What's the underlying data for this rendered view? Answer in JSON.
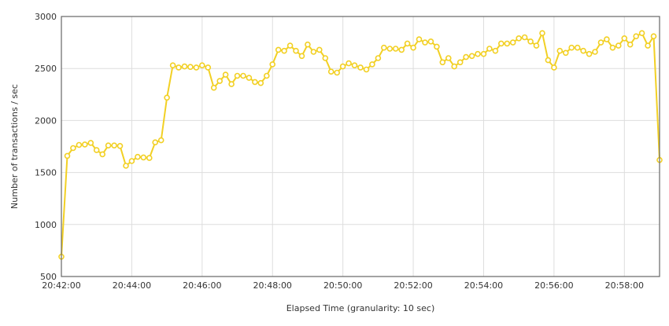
{
  "chart_data": {
    "type": "line",
    "title": "",
    "xlabel": "Elapsed Time (granularity: 10 sec)",
    "ylabel": "Number of transactions / sec",
    "ylim": [
      500,
      3000
    ],
    "y_ticks": [
      500,
      1000,
      1500,
      2000,
      2500,
      3000
    ],
    "x_start": "20:42:00",
    "x_end": "20:59:00",
    "x_ticks": [
      "20:42:00",
      "20:44:00",
      "20:46:00",
      "20:48:00",
      "20:50:00",
      "20:52:00",
      "20:54:00",
      "20:56:00",
      "20:58:00"
    ],
    "grid": true,
    "legend": "none",
    "series": [
      {
        "name": "",
        "color": "#f2d024",
        "points": [
          [
            "20:42:00",
            690
          ],
          [
            "20:42:10",
            1660
          ],
          [
            "20:42:20",
            1735
          ],
          [
            "20:42:30",
            1765
          ],
          [
            "20:42:40",
            1770
          ],
          [
            "20:42:50",
            1785
          ],
          [
            "20:43:00",
            1715
          ],
          [
            "20:43:10",
            1675
          ],
          [
            "20:43:20",
            1760
          ],
          [
            "20:43:30",
            1760
          ],
          [
            "20:43:40",
            1755
          ],
          [
            "20:43:50",
            1565
          ],
          [
            "20:44:00",
            1610
          ],
          [
            "20:44:10",
            1650
          ],
          [
            "20:44:20",
            1645
          ],
          [
            "20:44:30",
            1640
          ],
          [
            "20:44:40",
            1790
          ],
          [
            "20:44:50",
            1810
          ],
          [
            "20:45:00",
            2220
          ],
          [
            "20:45:10",
            2530
          ],
          [
            "20:45:20",
            2510
          ],
          [
            "20:45:30",
            2520
          ],
          [
            "20:45:40",
            2515
          ],
          [
            "20:45:50",
            2510
          ],
          [
            "20:46:00",
            2530
          ],
          [
            "20:46:10",
            2510
          ],
          [
            "20:46:20",
            2315
          ],
          [
            "20:46:30",
            2380
          ],
          [
            "20:46:40",
            2440
          ],
          [
            "20:46:50",
            2350
          ],
          [
            "20:47:00",
            2430
          ],
          [
            "20:47:10",
            2430
          ],
          [
            "20:47:20",
            2410
          ],
          [
            "20:47:30",
            2370
          ],
          [
            "20:47:40",
            2360
          ],
          [
            "20:47:50",
            2430
          ],
          [
            "20:48:00",
            2540
          ],
          [
            "20:48:10",
            2680
          ],
          [
            "20:48:20",
            2670
          ],
          [
            "20:48:30",
            2720
          ],
          [
            "20:48:40",
            2670
          ],
          [
            "20:48:50",
            2620
          ],
          [
            "20:49:00",
            2730
          ],
          [
            "20:49:10",
            2660
          ],
          [
            "20:49:20",
            2680
          ],
          [
            "20:49:30",
            2600
          ],
          [
            "20:49:40",
            2470
          ],
          [
            "20:49:50",
            2460
          ],
          [
            "20:50:00",
            2520
          ],
          [
            "20:50:10",
            2550
          ],
          [
            "20:50:20",
            2530
          ],
          [
            "20:50:30",
            2510
          ],
          [
            "20:50:40",
            2490
          ],
          [
            "20:50:50",
            2540
          ],
          [
            "20:51:00",
            2600
          ],
          [
            "20:51:10",
            2700
          ],
          [
            "20:51:20",
            2690
          ],
          [
            "20:51:30",
            2690
          ],
          [
            "20:51:40",
            2680
          ],
          [
            "20:51:50",
            2740
          ],
          [
            "20:52:00",
            2700
          ],
          [
            "20:52:10",
            2780
          ],
          [
            "20:52:20",
            2750
          ],
          [
            "20:52:30",
            2760
          ],
          [
            "20:52:40",
            2710
          ],
          [
            "20:52:50",
            2560
          ],
          [
            "20:53:00",
            2600
          ],
          [
            "20:53:10",
            2520
          ],
          [
            "20:53:20",
            2560
          ],
          [
            "20:53:30",
            2610
          ],
          [
            "20:53:40",
            2620
          ],
          [
            "20:53:50",
            2640
          ],
          [
            "20:54:00",
            2640
          ],
          [
            "20:54:10",
            2690
          ],
          [
            "20:54:20",
            2670
          ],
          [
            "20:54:30",
            2740
          ],
          [
            "20:54:40",
            2740
          ],
          [
            "20:54:50",
            2750
          ],
          [
            "20:55:00",
            2790
          ],
          [
            "20:55:10",
            2800
          ],
          [
            "20:55:20",
            2760
          ],
          [
            "20:55:30",
            2720
          ],
          [
            "20:55:40",
            2840
          ],
          [
            "20:55:50",
            2580
          ],
          [
            "20:56:00",
            2510
          ],
          [
            "20:56:10",
            2670
          ],
          [
            "20:56:20",
            2650
          ],
          [
            "20:56:30",
            2700
          ],
          [
            "20:56:40",
            2700
          ],
          [
            "20:56:50",
            2670
          ],
          [
            "20:57:00",
            2640
          ],
          [
            "20:57:10",
            2660
          ],
          [
            "20:57:20",
            2750
          ],
          [
            "20:57:30",
            2780
          ],
          [
            "20:57:40",
            2700
          ],
          [
            "20:57:50",
            2720
          ],
          [
            "20:58:00",
            2790
          ],
          [
            "20:58:10",
            2730
          ],
          [
            "20:58:20",
            2810
          ],
          [
            "20:58:30",
            2840
          ],
          [
            "20:58:40",
            2720
          ],
          [
            "20:58:50",
            2810
          ],
          [
            "20:59:00",
            1620
          ]
        ]
      }
    ]
  }
}
